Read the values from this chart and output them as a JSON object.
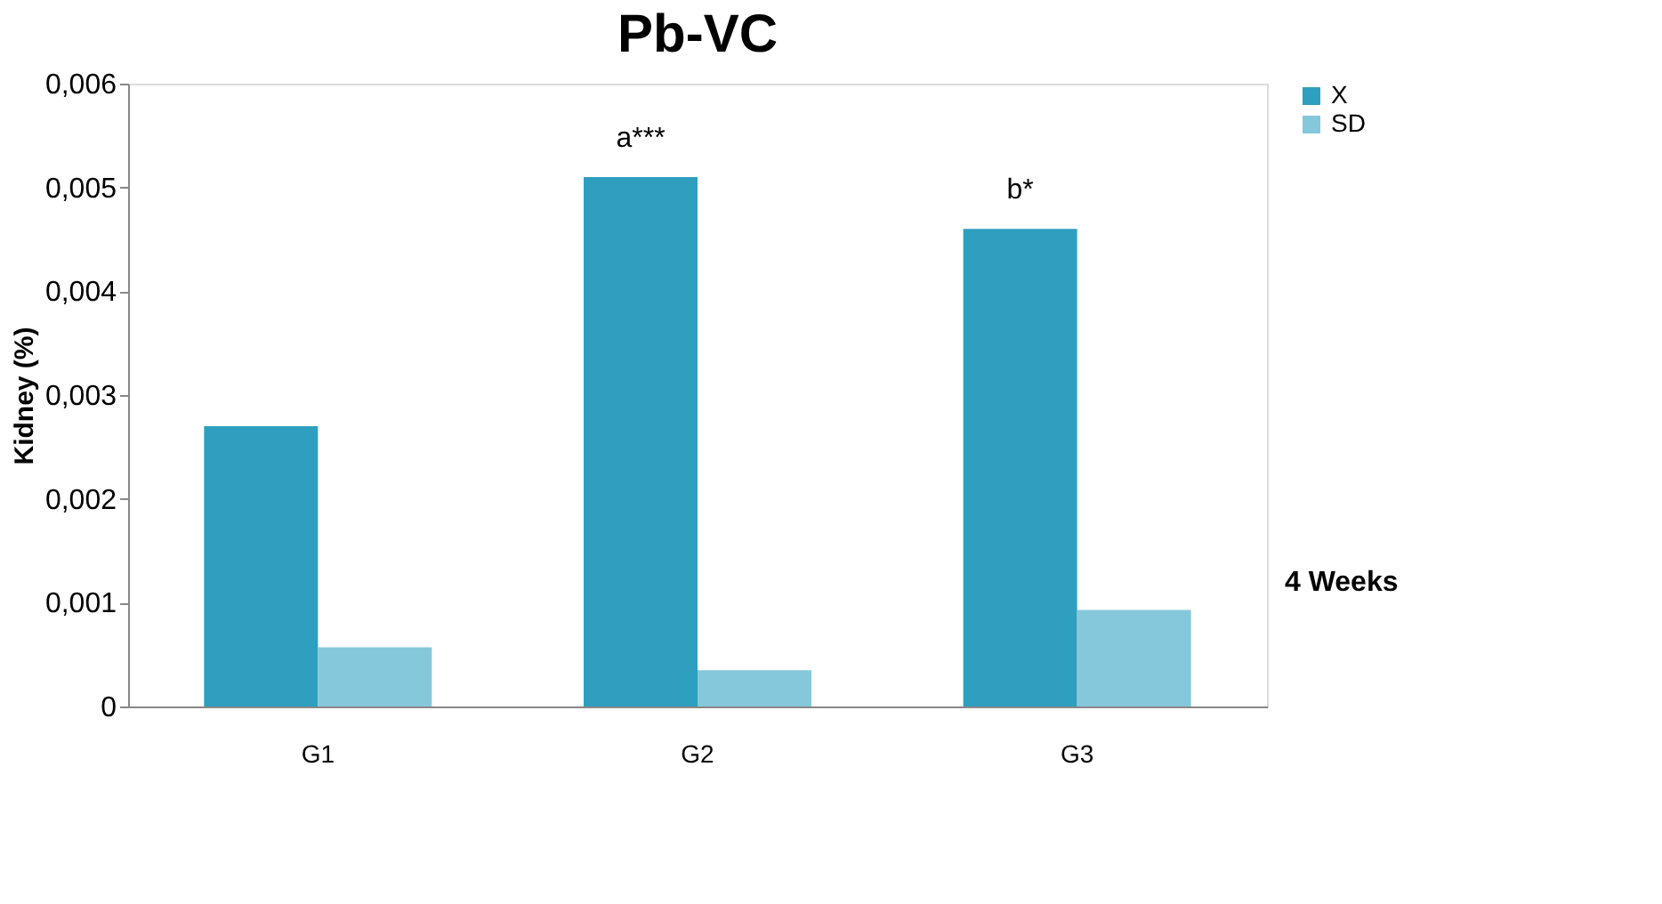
{
  "chart_data": {
    "type": "bar",
    "title": "Pb-VC",
    "ylabel": "Kidney (%)",
    "categories": [
      "G1",
      "G2",
      "G3"
    ],
    "series": [
      {
        "name": "X",
        "color": "#2f9fbf",
        "values": [
          0.0027,
          0.0051,
          0.0046
        ]
      },
      {
        "name": "SD",
        "color": "#86c8db",
        "values": [
          0.00057,
          0.00035,
          0.00093
        ]
      }
    ],
    "ylim": [
      0,
      0.006
    ],
    "yticks": [
      0,
      {
        "value": 0.001,
        "label": "0,001"
      },
      {
        "value": 0.002,
        "label": "0,002"
      },
      {
        "value": 0.003,
        "label": "0,003"
      },
      {
        "value": 0.004,
        "label": "0,004"
      },
      {
        "value": 0.005,
        "label": "0,005"
      },
      {
        "value": 0.006,
        "label": "0,006"
      }
    ],
    "annotations": [
      {
        "text": "a***",
        "x": "G2",
        "y": 0.0051
      },
      {
        "text": "b*",
        "x": "G3",
        "y": 0.0046
      },
      "4 Weeks"
    ],
    "legend": "top right",
    "grid": false
  }
}
